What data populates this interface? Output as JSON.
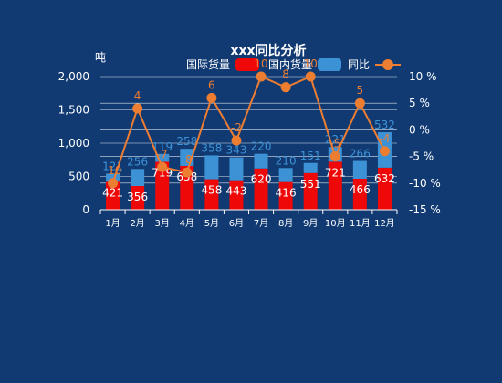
{
  "chart_data": {
    "type": "bar",
    "title": "xxx同比分析",
    "y_left_unit": "吨",
    "y_left_range": [
      0,
      2000
    ],
    "y_left_ticks": [
      "0",
      "500",
      "1,000",
      "1,500",
      "2,000"
    ],
    "y_right_range": [
      -15,
      10
    ],
    "y_right_ticks": [
      "-15 %",
      "-10 %",
      "-5 %",
      "0 %",
      "5 %",
      "10 %"
    ],
    "categories": [
      "1月",
      "2月",
      "3月",
      "4月",
      "5月",
      "6月",
      "7月",
      "8月",
      "9月",
      "10月",
      "11月",
      "12月"
    ],
    "legend_position": "top-right",
    "series": [
      {
        "name": "国际货量",
        "kind": "bar-stack-bottom",
        "color": "#ee0808",
        "values": [
          421,
          356,
          719,
          658,
          458,
          443,
          620,
          416,
          551,
          721,
          466,
          632
        ],
        "labels": [
          "421",
          "356",
          "719",
          "658",
          "458",
          "443",
          "620",
          "416",
          "551",
          "721",
          "466",
          "632"
        ]
      },
      {
        "name": "国内货量",
        "kind": "bar-stack-top",
        "color": "#3c92d4",
        "values": [
          121,
          256,
          119,
          258,
          358,
          343,
          220,
          210,
          151,
          221,
          266,
          532
        ],
        "labels": [
          "121",
          "256",
          "119",
          "258",
          "358",
          "343",
          "220",
          "210",
          "151",
          "221",
          "266",
          "532"
        ]
      },
      {
        "name": "同比",
        "kind": "line",
        "color": "#ed7d31",
        "values": [
          -10,
          4,
          -7,
          -8,
          6,
          -2,
          10,
          8,
          10,
          -5,
          5,
          -4
        ],
        "labels": [
          "-10",
          "4",
          "-7",
          "-8",
          "6",
          "-2",
          "10",
          "8",
          "10",
          "-5",
          "5",
          "-4"
        ]
      }
    ],
    "grid": true
  }
}
